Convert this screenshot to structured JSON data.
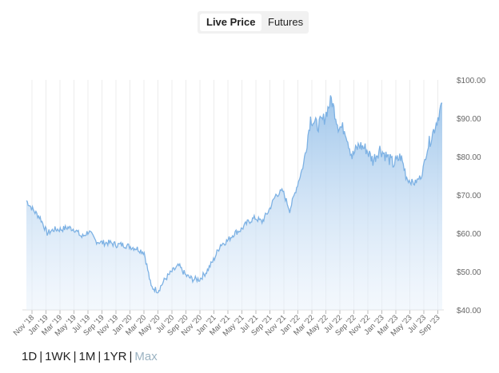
{
  "tabs": {
    "live": "Live Price",
    "futures": "Futures"
  },
  "ranges": {
    "d1": "1D",
    "wk1": "1WK",
    "m1": "1M",
    "yr1": "1YR",
    "max": "Max",
    "separator": "|"
  },
  "colors": {
    "line": "#7eb2e4",
    "fill": "#b7d4f0",
    "grid": "#ececec"
  },
  "chart_data": {
    "type": "area",
    "title": "",
    "ylim": [
      40,
      100
    ],
    "yticks": [
      "$40.00",
      "$50.00",
      "$60.00",
      "$70.00",
      "$80.00",
      "$90.00",
      "$100.00"
    ],
    "ytick_values": [
      40,
      50,
      60,
      70,
      80,
      90,
      100
    ],
    "xticks": [
      "Nov '18",
      "Jan '19",
      "Mar '19",
      "May '19",
      "Jul '19",
      "Sep '19",
      "Nov '19",
      "Jan '20",
      "Mar '20",
      "May '20",
      "Jul '20",
      "Sep '20",
      "Nov '20",
      "Jan '21",
      "Mar '21",
      "May '21",
      "Jul '21",
      "Sep '21",
      "Nov '21",
      "Jan '22",
      "Mar '22",
      "May '22",
      "Jul '22",
      "Sep '22",
      "Nov '22",
      "Jan '23",
      "Mar '23",
      "May '23",
      "Jul '23",
      "Sep '23"
    ],
    "x_months_from_nov18_start": -0.4,
    "values_monthly_from_oct18": [
      68.5,
      66,
      64,
      60,
      61,
      61,
      61.5,
      61,
      59,
      60.5,
      58,
      57.5,
      57.5,
      57,
      57,
      56.5,
      56,
      55,
      46,
      45,
      48,
      50,
      51.5,
      49,
      48,
      48,
      50,
      53,
      57,
      58,
      60,
      61,
      63,
      64,
      63,
      66,
      70,
      71,
      66,
      72,
      78,
      90,
      88,
      90,
      95,
      88,
      87,
      80,
      83,
      82,
      79,
      82,
      80,
      78,
      80,
      74,
      73,
      75,
      83,
      88,
      94
    ]
  }
}
